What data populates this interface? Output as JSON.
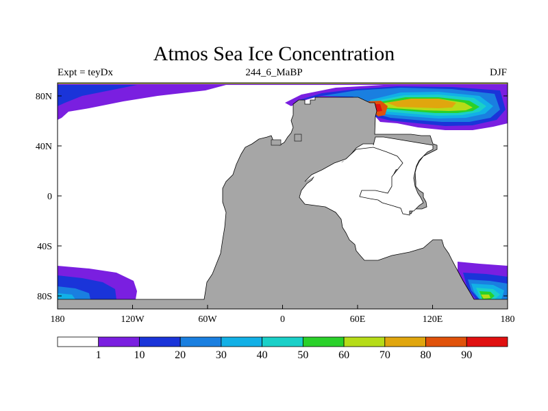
{
  "title": "Atmos Sea Ice Concentration",
  "subtitle_left": "Expt = teyDx",
  "subtitle_center": "244_6_MaBP",
  "subtitle_right": "DJF",
  "lat_labels": [
    "80N",
    "40N",
    "0",
    "40S",
    "80S"
  ],
  "lon_labels": [
    "180",
    "120W",
    "60W",
    "0",
    "60E",
    "120E",
    "180"
  ],
  "colorbar": {
    "labels": [
      "1",
      "10",
      "20",
      "30",
      "40",
      "50",
      "60",
      "70",
      "80",
      "90"
    ],
    "colors": [
      "#ffffff",
      "#7a1fe0",
      "#1a34d9",
      "#1a7fe0",
      "#12b0e6",
      "#1ad0c8",
      "#2ad12a",
      "#b6dc18",
      "#e0a60e",
      "#e0520a",
      "#e01010"
    ]
  },
  "colors": {
    "land": "#a6a6a6",
    "ocean": "#ffffff"
  }
}
